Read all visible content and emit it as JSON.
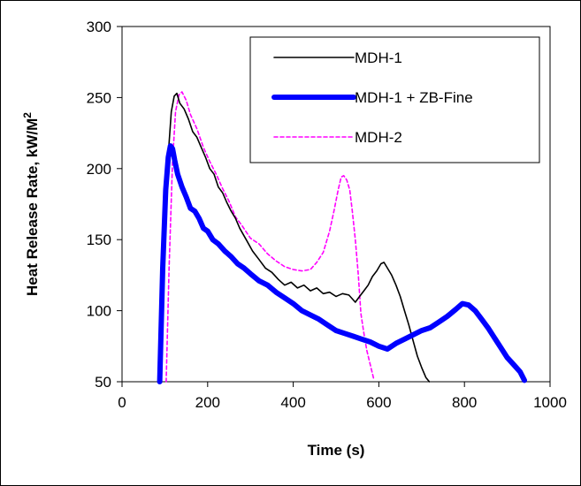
{
  "chart_data": {
    "type": "line",
    "title": "",
    "xlabel": "Time (s)",
    "ylabel_main": "Heat Release Rate, kW/M",
    "ylabel_sup": "2",
    "xlim": [
      0,
      1000
    ],
    "ylim": [
      50,
      300
    ],
    "x_ticks": [
      "0",
      "200",
      "400",
      "600",
      "800",
      "1000"
    ],
    "y_ticks": [
      "50",
      "100",
      "150",
      "200",
      "250",
      "300"
    ],
    "grid": false,
    "legend_position": "top-right",
    "series": [
      {
        "name": "MDH-1",
        "color": "#000000",
        "style": "solid-thin",
        "x": [
          92,
          100,
          108,
          115,
          122,
          128,
          135,
          145,
          155,
          165,
          175,
          185,
          195,
          205,
          215,
          225,
          235,
          245,
          255,
          265,
          275,
          290,
          305,
          320,
          335,
          350,
          365,
          380,
          395,
          410,
          425,
          440,
          455,
          470,
          485,
          500,
          515,
          530,
          545,
          555,
          565,
          575,
          585,
          595,
          605,
          612,
          620,
          630,
          640,
          650,
          660,
          670,
          680,
          690,
          700,
          710,
          718
        ],
        "y": [
          50,
          150,
          210,
          240,
          251,
          253,
          246,
          242,
          235,
          226,
          222,
          215,
          208,
          200,
          196,
          187,
          183,
          176,
          170,
          165,
          158,
          150,
          142,
          136,
          130,
          127,
          122,
          118,
          120,
          116,
          118,
          114,
          116,
          112,
          113,
          110,
          112,
          111,
          106,
          110,
          114,
          118,
          124,
          128,
          133,
          134,
          130,
          125,
          118,
          110,
          100,
          90,
          79,
          68,
          60,
          53,
          50
        ]
      },
      {
        "name": "MDH-1 + ZB-Fine",
        "color": "#0000FF",
        "style": "solid-thick",
        "x": [
          88,
          95,
          102,
          108,
          113,
          118,
          123,
          130,
          140,
          150,
          160,
          170,
          180,
          190,
          200,
          212,
          225,
          240,
          255,
          270,
          285,
          300,
          320,
          340,
          360,
          380,
          400,
          420,
          440,
          460,
          480,
          500,
          520,
          540,
          560,
          580,
          600,
          620,
          640,
          660,
          680,
          700,
          720,
          740,
          760,
          780,
          795,
          810,
          825,
          840,
          855,
          870,
          885,
          900,
          915,
          930,
          940
        ],
        "y": [
          50,
          130,
          185,
          208,
          216,
          214,
          206,
          196,
          187,
          180,
          172,
          170,
          165,
          158,
          156,
          150,
          147,
          142,
          138,
          133,
          130,
          126,
          121,
          118,
          113,
          109,
          105,
          100,
          97,
          94,
          90,
          86,
          84,
          82,
          80,
          78,
          75,
          73,
          77,
          80,
          83,
          86,
          88,
          92,
          96,
          101,
          105,
          104,
          100,
          94,
          88,
          81,
          74,
          67,
          62,
          57,
          51
        ]
      },
      {
        "name": "MDH-2",
        "color": "#FF00FF",
        "style": "dashed",
        "x": [
          103,
          110,
          118,
          125,
          133,
          140,
          150,
          160,
          175,
          190,
          205,
          220,
          235,
          250,
          265,
          280,
          300,
          320,
          340,
          360,
          380,
          400,
          420,
          440,
          455,
          470,
          485,
          495,
          505,
          512,
          518,
          525,
          532,
          538,
          545,
          552,
          558,
          565,
          572,
          580,
          588
        ],
        "y": [
          50,
          130,
          205,
          240,
          252,
          254,
          248,
          238,
          228,
          215,
          205,
          196,
          186,
          177,
          166,
          160,
          151,
          147,
          140,
          135,
          131,
          129,
          128,
          129,
          134,
          141,
          156,
          170,
          185,
          194,
          195,
          192,
          185,
          170,
          150,
          125,
          98,
          84,
          72,
          62,
          52
        ]
      }
    ]
  }
}
